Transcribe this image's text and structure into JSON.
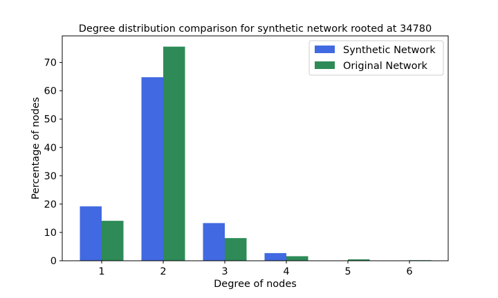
{
  "chart_data": {
    "type": "bar",
    "title": "Degree distribution comparison for synthetic network rooted at 34780",
    "xlabel": "Degree of nodes",
    "ylabel": "Percentage of nodes",
    "categories": [
      "1",
      "2",
      "3",
      "4",
      "5",
      "6"
    ],
    "series": [
      {
        "name": "Synthetic Network",
        "color": "#4169e1",
        "values": [
          19.2,
          64.8,
          13.3,
          2.7,
          0.0,
          0.0
        ]
      },
      {
        "name": "Original Network",
        "color": "#2e8b57",
        "values": [
          14.1,
          75.6,
          8.0,
          1.6,
          0.5,
          0.2
        ]
      }
    ],
    "ylim": [
      0,
      79.4
    ],
    "yticks": [
      "0",
      "10",
      "20",
      "30",
      "40",
      "50",
      "60",
      "70"
    ],
    "legend": "top-right",
    "grid": false
  }
}
